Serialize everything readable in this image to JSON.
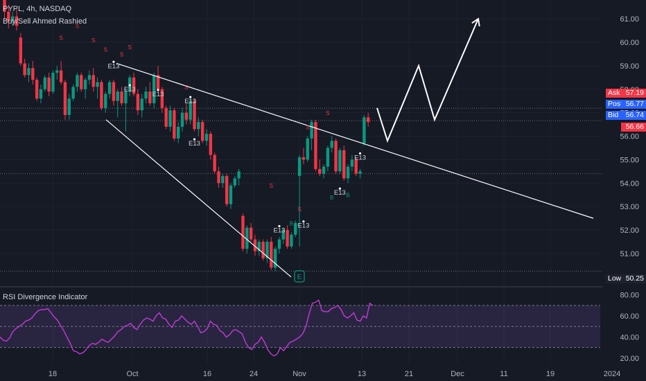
{
  "header": {
    "symbol_line": "PYPL, 4h, NASDAQ",
    "indicator_line": "Buy/Sell Ahmed Rashied"
  },
  "rsi_panel": {
    "title": "RSI Divergence Indicator"
  },
  "price_tags": [
    {
      "label": "Ask",
      "value": "57.19",
      "color": "#f23645"
    },
    {
      "label": "Post",
      "value": "56.77",
      "color": "#2962ff"
    },
    {
      "label": "Bid",
      "value": "56.74",
      "color": "#2962ff"
    },
    {
      "label": "",
      "value": "56.66",
      "color": "#f23645"
    },
    {
      "label": "Low",
      "value": "50.25",
      "color": "#1e222d"
    }
  ],
  "colors": {
    "background": "#161a25",
    "up_candle": "#089981",
    "down_candle": "#f23645",
    "rsi_line": "#c13bd6",
    "rsi_band": "#7e57c2",
    "trendline": "#ffffff",
    "grid": "#1f2330"
  },
  "chart_data": [
    {
      "type": "candlestick",
      "title": "PYPL, 4h, NASDAQ",
      "x_ticks": [
        "18",
        "Oct",
        "16",
        "24",
        "Nov",
        "13",
        "21",
        "Dec",
        "11",
        "19",
        "2024"
      ],
      "y_ticks": [
        51,
        52,
        53,
        54,
        55,
        56,
        57,
        58,
        59,
        60,
        61
      ],
      "ylim": [
        49.7,
        61.8
      ],
      "candles": [
        [
          61.8,
          62.1,
          61.0,
          61.3
        ],
        [
          61.3,
          61.6,
          60.6,
          60.9
        ],
        [
          60.9,
          61.3,
          60.7,
          61.1
        ],
        [
          61.1,
          61.4,
          60.5,
          60.7
        ],
        [
          60.2,
          60.4,
          59.0,
          59.1
        ],
        [
          59.1,
          59.3,
          58.5,
          58.6
        ],
        [
          58.6,
          59.1,
          58.3,
          58.9
        ],
        [
          58.9,
          59.2,
          58.2,
          58.4
        ],
        [
          58.4,
          58.5,
          57.5,
          57.6
        ],
        [
          57.6,
          58.2,
          57.4,
          58.0
        ],
        [
          58.0,
          58.6,
          57.9,
          58.5
        ],
        [
          58.5,
          58.7,
          57.7,
          57.9
        ],
        [
          57.9,
          58.8,
          57.8,
          58.7
        ],
        [
          58.7,
          59.0,
          58.4,
          58.8
        ],
        [
          58.8,
          59.2,
          58.2,
          58.3
        ],
        [
          58.3,
          58.4,
          56.7,
          56.9
        ],
        [
          56.9,
          57.8,
          56.7,
          57.6
        ],
        [
          57.6,
          58.2,
          57.5,
          58.1
        ],
        [
          58.1,
          58.7,
          57.9,
          58.6
        ],
        [
          58.6,
          58.7,
          57.9,
          58.0
        ],
        [
          58.0,
          58.5,
          57.6,
          58.4
        ],
        [
          58.4,
          58.8,
          58.2,
          58.6
        ],
        [
          58.6,
          58.9,
          57.9,
          58.1
        ],
        [
          58.1,
          58.5,
          57.6,
          58.3
        ],
        [
          58.3,
          58.4,
          57.1,
          57.2
        ],
        [
          57.2,
          57.9,
          57.0,
          57.8
        ],
        [
          57.8,
          58.4,
          57.6,
          58.3
        ],
        [
          58.3,
          58.4,
          57.3,
          57.5
        ],
        [
          57.5,
          58.0,
          56.8,
          57.9
        ],
        [
          57.9,
          58.1,
          57.3,
          57.4
        ],
        [
          57.4,
          58.0,
          56.2,
          57.9
        ],
        [
          57.9,
          58.6,
          57.7,
          58.5
        ],
        [
          58.5,
          58.7,
          57.7,
          57.8
        ],
        [
          57.8,
          58.0,
          56.9,
          57.1
        ],
        [
          57.1,
          57.8,
          56.8,
          57.6
        ],
        [
          57.6,
          58.1,
          57.4,
          57.9
        ],
        [
          57.9,
          58.3,
          57.3,
          57.4
        ],
        [
          57.4,
          58.7,
          57.2,
          58.6
        ],
        [
          58.6,
          59.0,
          57.9,
          58.0
        ],
        [
          58.0,
          58.1,
          57.0,
          57.2
        ],
        [
          57.2,
          57.3,
          56.3,
          56.4
        ],
        [
          56.4,
          57.3,
          56.2,
          57.1
        ],
        [
          57.1,
          57.2,
          55.8,
          55.9
        ],
        [
          55.9,
          56.6,
          55.7,
          56.4
        ],
        [
          56.4,
          57.2,
          56.2,
          57.0
        ],
        [
          57.0,
          57.4,
          56.5,
          56.7
        ],
        [
          56.7,
          57.6,
          56.5,
          57.5
        ],
        [
          57.5,
          57.6,
          56.2,
          56.3
        ],
        [
          56.3,
          56.8,
          56.0,
          56.6
        ],
        [
          56.6,
          56.7,
          55.7,
          55.8
        ],
        [
          55.8,
          56.3,
          55.6,
          56.1
        ],
        [
          56.1,
          56.2,
          55.0,
          55.2
        ],
        [
          55.2,
          55.3,
          54.4,
          54.5
        ],
        [
          54.5,
          54.7,
          53.8,
          54.0
        ],
        [
          54.0,
          54.4,
          53.8,
          54.3
        ],
        [
          54.3,
          54.4,
          53.0,
          53.1
        ],
        [
          53.1,
          54.0,
          52.9,
          53.9
        ],
        [
          53.9,
          54.3,
          53.8,
          54.2
        ],
        [
          54.2,
          54.6,
          53.9,
          54.5
        ],
        [
          52.6,
          52.7,
          51.1,
          51.2
        ],
        [
          51.2,
          52.2,
          51.0,
          52.1
        ],
        [
          52.1,
          52.3,
          51.5,
          51.6
        ],
        [
          51.6,
          51.8,
          50.9,
          51.1
        ],
        [
          51.1,
          51.6,
          50.9,
          51.5
        ],
        [
          51.5,
          51.6,
          50.7,
          50.8
        ],
        [
          50.8,
          51.6,
          50.6,
          51.5
        ],
        [
          51.5,
          51.7,
          50.3,
          50.4
        ],
        [
          50.4,
          51.3,
          50.25,
          51.2
        ],
        [
          51.2,
          51.7,
          51.0,
          51.6
        ],
        [
          51.6,
          52.1,
          51.4,
          52.0
        ],
        [
          52.0,
          52.2,
          51.2,
          51.3
        ],
        [
          51.3,
          51.9,
          51.2,
          51.8
        ],
        [
          51.8,
          52.4,
          51.7,
          52.3
        ],
        [
          54.3,
          55.2,
          51.3,
          55.1
        ],
        [
          55.1,
          55.5,
          54.8,
          55.0
        ],
        [
          55.0,
          56.0,
          54.9,
          55.9
        ],
        [
          55.9,
          56.7,
          55.4,
          56.6
        ],
        [
          56.6,
          56.7,
          54.5,
          54.6
        ],
        [
          54.6,
          55.0,
          54.3,
          54.4
        ],
        [
          54.4,
          54.8,
          54.2,
          54.7
        ],
        [
          54.7,
          55.6,
          54.5,
          55.5
        ],
        [
          55.5,
          56.0,
          55.3,
          55.8
        ],
        [
          55.8,
          55.9,
          54.4,
          54.5
        ],
        [
          54.5,
          55.5,
          54.4,
          55.4
        ],
        [
          55.4,
          55.6,
          54.1,
          54.2
        ],
        [
          54.2,
          54.8,
          54.0,
          54.7
        ],
        [
          54.7,
          55.2,
          54.5,
          55.0
        ],
        [
          55.0,
          55.1,
          54.3,
          54.4
        ],
        [
          54.4,
          54.6,
          54.2,
          54.5
        ],
        [
          55.7,
          56.9,
          55.6,
          56.8
        ],
        [
          56.8,
          57.0,
          56.4,
          56.6
        ]
      ],
      "markers": [
        {
          "label": "S",
          "kind": "sell",
          "x_index": 14,
          "price": 60.1
        },
        {
          "label": "S",
          "kind": "sell",
          "x_index": 18,
          "price": 60.6
        },
        {
          "label": "S",
          "kind": "sell",
          "x_index": 22,
          "price": 60.0
        },
        {
          "label": "S",
          "kind": "sell",
          "x_index": 25,
          "price": 59.6
        },
        {
          "label": "S",
          "kind": "sell",
          "x_index": 29,
          "price": 59.4
        },
        {
          "label": "S",
          "kind": "sell",
          "x_index": 31,
          "price": 59.7
        },
        {
          "label": "S",
          "kind": "sell",
          "x_index": 45,
          "price": 58.0
        },
        {
          "label": "S",
          "kind": "sell",
          "x_index": 66,
          "price": 53.8
        },
        {
          "label": "S",
          "kind": "sell",
          "x_index": 73,
          "price": 52.8
        },
        {
          "label": "S",
          "kind": "sell",
          "x_index": 75,
          "price": 56.3
        },
        {
          "label": "S",
          "kind": "sell",
          "x_index": 80,
          "price": 56.9
        },
        {
          "label": "B",
          "kind": "buy",
          "x_index": 71,
          "price": 52.2
        },
        {
          "label": "B",
          "kind": "buy",
          "x_index": 81,
          "price": 53.3
        },
        {
          "label": "B",
          "kind": "buy",
          "x_index": 85,
          "price": 53.4
        },
        {
          "label": "E13",
          "kind": "exit",
          "x_index": 27,
          "price": 58.9
        },
        {
          "label": "E13",
          "kind": "exit",
          "x_index": 31,
          "price": 57.9
        },
        {
          "label": "E13",
          "kind": "exit",
          "x_index": 38,
          "price": 57.7
        },
        {
          "label": "E13",
          "kind": "exit",
          "x_index": 46,
          "price": 57.4
        },
        {
          "label": "E13",
          "kind": "exit",
          "x_index": 47,
          "price": 55.6
        },
        {
          "label": "E13",
          "kind": "exit",
          "x_index": 68,
          "price": 51.9
        },
        {
          "label": "E13",
          "kind": "exit",
          "x_index": 74,
          "price": 52.1
        },
        {
          "label": "E13",
          "kind": "exit",
          "x_index": 83,
          "price": 53.5
        },
        {
          "label": "E13",
          "kind": "exit",
          "x_index": 88,
          "price": 55.0
        }
      ],
      "shapes": [
        {
          "kind": "trendline",
          "role": "upper",
          "from": [
            "Sep 30",
            59.1
          ],
          "to": [
            "Dec 27",
            52.5
          ]
        },
        {
          "kind": "trendline",
          "role": "lower",
          "from": [
            "Sep 28",
            56.7
          ],
          "to": [
            "Oct 30",
            50.0
          ]
        },
        {
          "kind": "projection",
          "points": [
            [
              "Nov 15",
              57.2
            ],
            [
              "Nov 17",
              55.8
            ],
            [
              "Nov 26",
              59.0
            ],
            [
              "Dec 1",
              56.7
            ],
            [
              "Dec 10",
              61.0
            ]
          ]
        }
      ],
      "level_lines": [
        57.19,
        56.66,
        54.4,
        50.25
      ]
    },
    {
      "type": "line",
      "title": "RSI Divergence Indicator",
      "y_ticks": [
        20,
        40,
        60,
        80
      ],
      "ylim": [
        14,
        85
      ],
      "bands": [
        30,
        50,
        70
      ],
      "values": [
        40,
        37,
        36,
        39,
        45,
        48,
        50,
        52,
        55,
        56,
        58,
        62,
        65,
        66,
        66,
        67,
        63,
        59,
        56,
        51,
        46,
        40,
        34,
        27,
        26,
        24,
        25,
        28,
        32,
        34,
        33,
        35,
        38,
        36,
        35,
        38,
        41,
        45,
        47,
        50,
        51,
        53,
        49,
        47,
        52,
        56,
        58,
        57,
        55,
        60,
        63,
        58,
        57,
        52,
        49,
        55,
        56,
        60,
        57,
        54,
        52,
        55,
        50,
        44,
        45,
        48,
        55,
        52,
        51,
        46,
        44,
        40,
        42,
        46,
        47,
        45,
        43,
        35,
        30,
        28,
        33,
        35,
        40,
        35,
        28,
        24,
        22,
        24,
        30,
        27,
        31,
        35,
        36,
        38,
        40,
        43,
        50,
        62,
        72,
        73,
        75,
        65,
        64,
        64,
        67,
        68,
        70,
        66,
        60,
        58,
        60,
        63,
        56,
        55,
        60,
        58,
        72,
        70
      ]
    }
  ]
}
